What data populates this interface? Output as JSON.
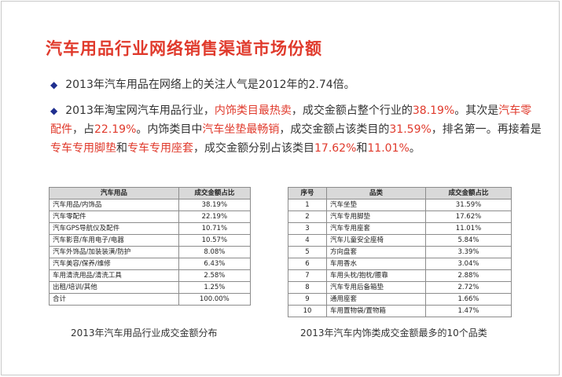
{
  "title": "汽车用品行业网络销售渠道市场份额",
  "bullet1": {
    "text": "2013年汽车用品在网络上的关注人气是2012年的2.74倍。"
  },
  "bullet2": {
    "p1": "2013年淘宝网汽车用品行业，",
    "h1": "内饰类目最热卖",
    "p2": "，成交金额占整个行业的",
    "h2": "38.19%",
    "p3": "。其次是",
    "h3": "汽车零配件",
    "p4": "，占",
    "h4": "22.19%",
    "p5": "。内饰类目中",
    "h5": "汽车坐垫最畅销",
    "p6": "，成交金额占该类目的",
    "h6": "31.59%",
    "p7": "，排名第一。再接着是",
    "h7": "专车专用脚垫",
    "p8": "和",
    "h8": "专车专用座套",
    "p9": "，成交金额分别占该类目",
    "h9": "17.62%",
    "p10": "和",
    "h10": "11.01%",
    "p11": "。"
  },
  "table1": {
    "headers": [
      "汽车用品",
      "成交金额占比"
    ],
    "rows": [
      [
        "汽车用品/内饰品",
        "38.19%"
      ],
      [
        "汽车零配件",
        "22.19%"
      ],
      [
        "汽车GPS导航仪及配件",
        "10.71%"
      ],
      [
        "汽车影音/车用电子/电器",
        "10.57%"
      ],
      [
        "汽车外饰品/加装装潢/防护",
        "8.08%"
      ],
      [
        "汽车美容/保养/维修",
        "6.43%"
      ],
      [
        "车用清洗用品/清洗工具",
        "2.58%"
      ],
      [
        "出租/培训/其他",
        "1.25%"
      ],
      [
        "合计",
        "100.00%"
      ]
    ],
    "caption": "2013年汽车用品行业成交金额分布"
  },
  "table2": {
    "headers": [
      "序号",
      "品类",
      "成交金额占比"
    ],
    "rows": [
      [
        "1",
        "汽车坐垫",
        "31.59%"
      ],
      [
        "2",
        "汽车专用脚垫",
        "17.62%"
      ],
      [
        "3",
        "汽车专用座套",
        "11.01%"
      ],
      [
        "4",
        "汽车儿童安全座椅",
        "5.84%"
      ],
      [
        "5",
        "方向盘套",
        "3.39%"
      ],
      [
        "6",
        "车用香水",
        "3.04%"
      ],
      [
        "7",
        "车用头枕/抱枕/腰靠",
        "2.88%"
      ],
      [
        "8",
        "汽车专用后备箱垫",
        "2.72%"
      ],
      [
        "9",
        "通用座套",
        "1.66%"
      ],
      [
        "10",
        "车用置物袋/置物箱",
        "1.47%"
      ]
    ],
    "caption": "2013年汽车内饰类成交金额最多的10个品类"
  },
  "colors": {
    "accent": "#e03a2c",
    "bullet": "#1f2f8f",
    "header_bg": "#d9d9d9"
  }
}
